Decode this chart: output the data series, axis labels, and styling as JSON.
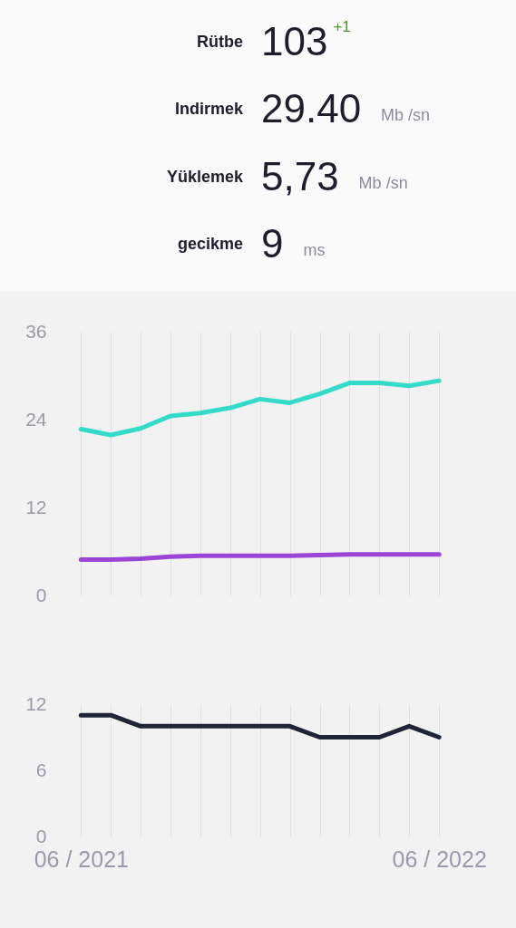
{
  "chart_data": [
    {
      "type": "other",
      "annotations": [
        "Rütbe",
        "103",
        "+1",
        "Indirmek",
        "29.40",
        "Mb /sn",
        "Yüklemek",
        "5,73",
        "Mb /sn",
        "gecikme",
        "9",
        "ms"
      ]
    },
    {
      "type": "line",
      "categories": [
        null,
        null,
        null,
        null,
        null,
        null,
        null,
        null,
        null,
        null,
        null,
        null,
        null
      ],
      "series": [
        {
          "color": "#33dbc8",
          "values": [
            22.7,
            21.9,
            22.8,
            24.5,
            24.9,
            25.6,
            26.8,
            26.3,
            27.5,
            29.0,
            29.0,
            28.6,
            29.3
          ]
        },
        {
          "color": "#9b45d6",
          "values": [
            4.9,
            4.9,
            5.0,
            5.3,
            5.4,
            5.4,
            5.4,
            5.4,
            5.5,
            5.6,
            5.6,
            5.6,
            5.6
          ]
        }
      ],
      "ylim": [
        0,
        36
      ],
      "yticks": [
        0,
        12,
        24,
        36
      ],
      "grid": "x"
    },
    {
      "type": "line",
      "categories": [
        "06 / 2021",
        null,
        null,
        null,
        null,
        null,
        null,
        null,
        null,
        null,
        null,
        null,
        "06 / 2022"
      ],
      "series": [
        {
          "color": "#1f2437",
          "values": [
            11,
            11,
            10,
            10,
            10,
            10,
            10,
            10,
            9,
            9,
            9,
            10,
            9
          ]
        }
      ],
      "ylim": [
        0,
        12
      ],
      "yticks": [
        0,
        6,
        12
      ],
      "grid": "x"
    }
  ]
}
